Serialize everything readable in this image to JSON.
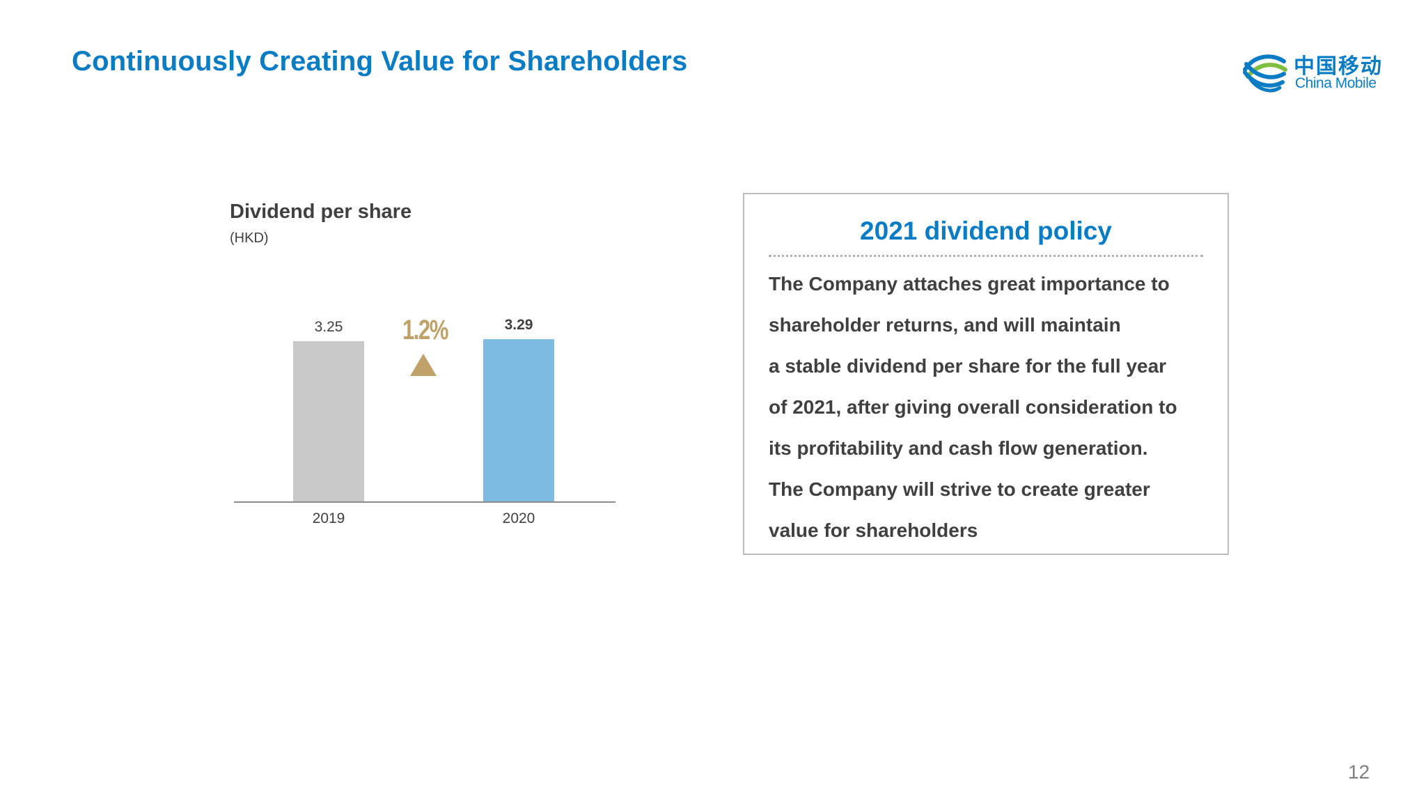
{
  "header": {
    "title": "Continuously Creating Value for Shareholders",
    "logo_cn": "中国移动",
    "logo_en": "China Mobile"
  },
  "chart_data": {
    "type": "bar",
    "title": "Dividend per share",
    "unit": "(HKD)",
    "categories": [
      "2019",
      "2020"
    ],
    "values": [
      3.25,
      3.29
    ],
    "value_labels": [
      "3.25",
      "3.29"
    ],
    "bar_colors": [
      "#c9c9c9",
      "#7dbde3"
    ],
    "ylim": [
      0,
      3.5
    ],
    "grid": false,
    "annotation": {
      "text": "1.2%",
      "direction": "up",
      "color": "#bfa26a"
    }
  },
  "policy": {
    "title": "2021 dividend policy",
    "lines": [
      "The Company attaches great importance to",
      "shareholder returns, and will maintain",
      "a stable dividend per share for the full year",
      "of 2021, after giving overall consideration to",
      "its profitability and cash flow generation.",
      "The Company will strive to create greater",
      "value for shareholders"
    ]
  },
  "footer": {
    "page_number": "12"
  },
  "colors": {
    "accent": "#0a7cc4",
    "text": "#404040",
    "highlight": "#bfa26a"
  }
}
